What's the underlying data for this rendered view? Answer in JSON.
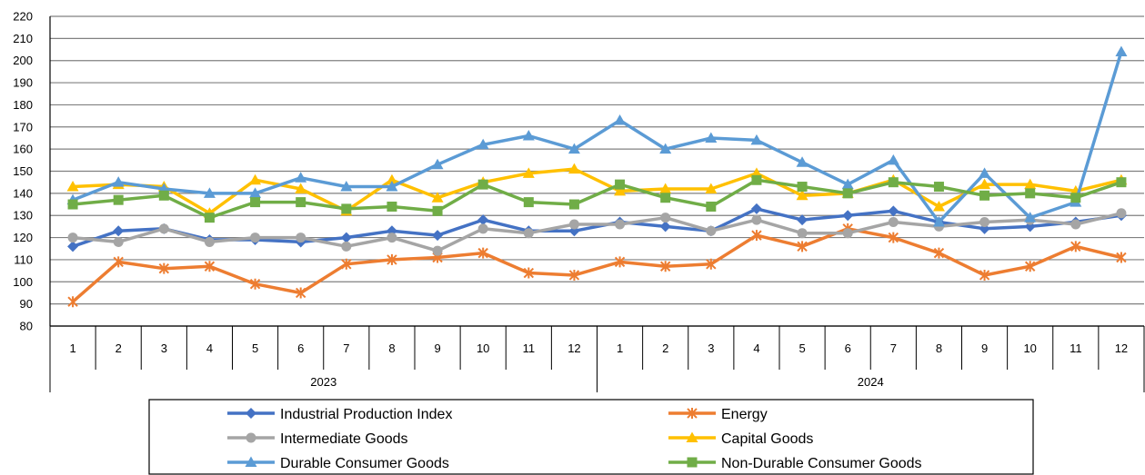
{
  "chart_data": {
    "type": "line",
    "x_months": [
      "1",
      "2",
      "3",
      "4",
      "5",
      "6",
      "7",
      "8",
      "9",
      "10",
      "11",
      "12",
      "1",
      "2",
      "3",
      "4",
      "5",
      "6",
      "7",
      "8",
      "9",
      "10",
      "11",
      "12"
    ],
    "x_years": [
      {
        "label": "2023",
        "months": 12
      },
      {
        "label": "2024",
        "months": 12
      }
    ],
    "ylim": [
      80,
      220
    ],
    "y_ticks": [
      80,
      90,
      100,
      110,
      120,
      130,
      140,
      150,
      160,
      170,
      180,
      190,
      200,
      210,
      220
    ],
    "grid": true,
    "legend_position": "bottom",
    "series": [
      {
        "name": "Industrial Production Index",
        "color": "#4472C4",
        "marker": "diamond",
        "values": [
          116,
          123,
          124,
          119,
          119,
          118,
          120,
          123,
          121,
          128,
          123,
          123,
          127,
          125,
          123,
          133,
          128,
          130,
          132,
          127,
          124,
          125,
          127,
          130
        ]
      },
      {
        "name": "Energy",
        "color": "#ED7D31",
        "marker": "star",
        "values": [
          91,
          109,
          106,
          107,
          99,
          95,
          108,
          110,
          111,
          113,
          104,
          103,
          109,
          107,
          108,
          121,
          116,
          124,
          120,
          113,
          103,
          107,
          116,
          111
        ]
      },
      {
        "name": "Intermediate Goods",
        "color": "#A5A5A5",
        "marker": "circle",
        "values": [
          120,
          118,
          124,
          118,
          120,
          120,
          116,
          120,
          114,
          124,
          122,
          126,
          126,
          129,
          123,
          128,
          122,
          122,
          127,
          125,
          127,
          128,
          126,
          131
        ]
      },
      {
        "name": "Capital Goods",
        "color": "#FFC000",
        "marker": "triangle",
        "values": [
          143,
          144,
          143,
          131,
          146,
          142,
          132,
          146,
          138,
          145,
          149,
          151,
          141,
          142,
          142,
          149,
          139,
          140,
          146,
          134,
          144,
          144,
          141,
          146
        ]
      },
      {
        "name": "Durable Consumer Goods",
        "color": "#5B9BD5",
        "marker": "triangle",
        "values": [
          137,
          145,
          142,
          140,
          140,
          147,
          143,
          143,
          153,
          162,
          166,
          160,
          173,
          160,
          165,
          164,
          154,
          144,
          155,
          127,
          149,
          129,
          136,
          204
        ]
      },
      {
        "name": "Non-Durable Consumer Goods",
        "color": "#70AD47",
        "marker": "square",
        "values": [
          135,
          137,
          139,
          129,
          136,
          136,
          133,
          134,
          132,
          144,
          136,
          135,
          144,
          138,
          134,
          146,
          143,
          140,
          145,
          143,
          139,
          140,
          138,
          145
        ]
      }
    ]
  }
}
